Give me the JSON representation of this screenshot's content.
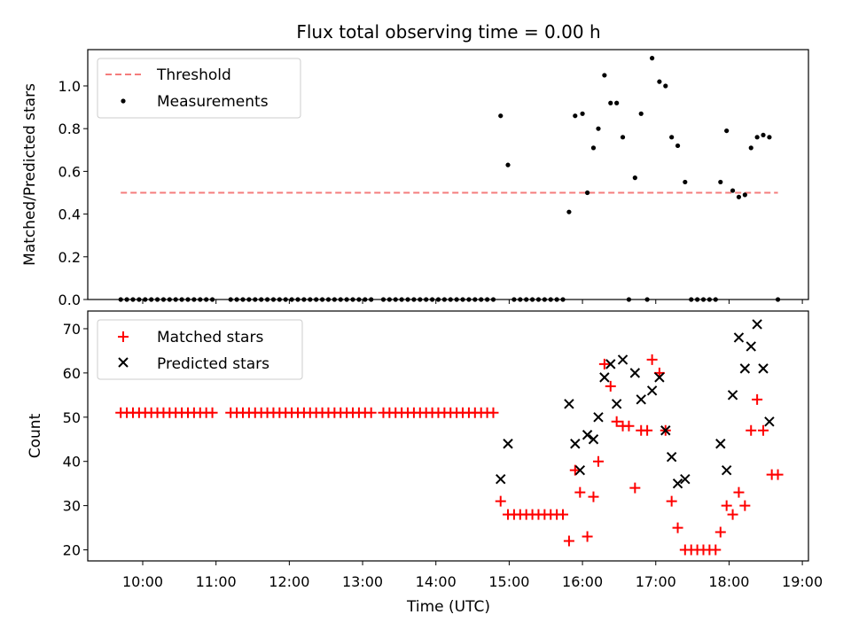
{
  "chart_data": [
    {
      "type": "scatter",
      "title": "Flux total observing time = 0.00 h",
      "ylabel": "Matched/Predicted stars",
      "xlim": [
        "09:15",
        "19:05"
      ],
      "ylim": [
        0,
        1.17
      ],
      "yticks": [
        "0.0",
        "0.2",
        "0.4",
        "0.6",
        "0.8",
        "1.0"
      ],
      "legend_position": "top-left",
      "grid": false,
      "threshold": {
        "name": "Threshold",
        "value": 0.5,
        "x_start": "09:42",
        "x_end": "18:40",
        "color": "#f47c7c"
      },
      "series": [
        {
          "name": "Measurements",
          "color": "#000000",
          "points": [
            [
              "09:42",
              0
            ],
            [
              "09:47",
              0
            ],
            [
              "09:52",
              0
            ],
            [
              "09:57",
              0
            ],
            [
              "10:02",
              0
            ],
            [
              "10:07",
              0
            ],
            [
              "10:12",
              0
            ],
            [
              "10:17",
              0
            ],
            [
              "10:22",
              0
            ],
            [
              "10:27",
              0
            ],
            [
              "10:32",
              0
            ],
            [
              "10:37",
              0
            ],
            [
              "10:42",
              0
            ],
            [
              "10:47",
              0
            ],
            [
              "10:52",
              0
            ],
            [
              "10:57",
              0
            ],
            [
              "11:12",
              0
            ],
            [
              "11:17",
              0
            ],
            [
              "11:22",
              0
            ],
            [
              "11:27",
              0
            ],
            [
              "11:32",
              0
            ],
            [
              "11:37",
              0
            ],
            [
              "11:42",
              0
            ],
            [
              "11:47",
              0
            ],
            [
              "11:52",
              0
            ],
            [
              "11:57",
              0
            ],
            [
              "12:02",
              0
            ],
            [
              "12:07",
              0
            ],
            [
              "12:12",
              0
            ],
            [
              "12:17",
              0
            ],
            [
              "12:22",
              0
            ],
            [
              "12:27",
              0
            ],
            [
              "12:32",
              0
            ],
            [
              "12:37",
              0
            ],
            [
              "12:42",
              0
            ],
            [
              "12:47",
              0
            ],
            [
              "12:52",
              0
            ],
            [
              "12:57",
              0
            ],
            [
              "13:02",
              0
            ],
            [
              "13:07",
              0
            ],
            [
              "13:17",
              0
            ],
            [
              "13:22",
              0
            ],
            [
              "13:27",
              0
            ],
            [
              "13:32",
              0
            ],
            [
              "13:37",
              0
            ],
            [
              "13:42",
              0
            ],
            [
              "13:47",
              0
            ],
            [
              "13:52",
              0
            ],
            [
              "13:57",
              0
            ],
            [
              "14:02",
              0
            ],
            [
              "14:07",
              0
            ],
            [
              "14:12",
              0
            ],
            [
              "14:17",
              0
            ],
            [
              "14:22",
              0
            ],
            [
              "14:27",
              0
            ],
            [
              "14:32",
              0
            ],
            [
              "14:37",
              0
            ],
            [
              "14:42",
              0
            ],
            [
              "14:47",
              0
            ],
            [
              "14:53",
              0.86
            ],
            [
              "14:59",
              0.63
            ],
            [
              "15:04",
              0
            ],
            [
              "15:09",
              0
            ],
            [
              "15:14",
              0
            ],
            [
              "15:19",
              0
            ],
            [
              "15:24",
              0
            ],
            [
              "15:29",
              0
            ],
            [
              "15:34",
              0
            ],
            [
              "15:39",
              0
            ],
            [
              "15:44",
              0
            ],
            [
              "15:49",
              0.41
            ],
            [
              "15:54",
              0.86
            ],
            [
              "16:00",
              0.87
            ],
            [
              "16:04",
              0.5
            ],
            [
              "16:09",
              0.71
            ],
            [
              "16:13",
              0.8
            ],
            [
              "16:18",
              1.05
            ],
            [
              "16:23",
              0.92
            ],
            [
              "16:28",
              0.92
            ],
            [
              "16:33",
              0.76
            ],
            [
              "16:38",
              0
            ],
            [
              "16:43",
              0.57
            ],
            [
              "16:48",
              0.87
            ],
            [
              "16:53",
              0
            ],
            [
              "16:57",
              1.13
            ],
            [
              "17:03",
              1.02
            ],
            [
              "17:08",
              1.0
            ],
            [
              "17:13",
              0.76
            ],
            [
              "17:18",
              0.72
            ],
            [
              "17:24",
              0.55
            ],
            [
              "17:29",
              0
            ],
            [
              "17:34",
              0
            ],
            [
              "17:39",
              0
            ],
            [
              "17:44",
              0
            ],
            [
              "17:49",
              0
            ],
            [
              "17:53",
              0.55
            ],
            [
              "17:58",
              0.79
            ],
            [
              "18:03",
              0.51
            ],
            [
              "18:08",
              0.48
            ],
            [
              "18:13",
              0.49
            ],
            [
              "18:18",
              0.71
            ],
            [
              "18:23",
              0.76
            ],
            [
              "18:28",
              0.77
            ],
            [
              "18:33",
              0.76
            ],
            [
              "18:40",
              0
            ]
          ]
        }
      ]
    },
    {
      "type": "scatter",
      "xlabel": "Time (UTC)",
      "ylabel": "Count",
      "xlim": [
        "09:15",
        "19:05"
      ],
      "ylim": [
        17.5,
        74
      ],
      "xticks": [
        "10:00",
        "11:00",
        "12:00",
        "13:00",
        "14:00",
        "15:00",
        "16:00",
        "17:00",
        "18:00",
        "19:00"
      ],
      "yticks": [
        "20",
        "30",
        "40",
        "50",
        "60",
        "70"
      ],
      "legend_position": "top-left",
      "grid": false,
      "series": [
        {
          "name": "Matched stars",
          "color": "#ff0000",
          "marker": "plus",
          "points": [
            [
              "09:42",
              51
            ],
            [
              "09:47",
              51
            ],
            [
              "09:52",
              51
            ],
            [
              "09:57",
              51
            ],
            [
              "10:02",
              51
            ],
            [
              "10:07",
              51
            ],
            [
              "10:12",
              51
            ],
            [
              "10:17",
              51
            ],
            [
              "10:22",
              51
            ],
            [
              "10:27",
              51
            ],
            [
              "10:32",
              51
            ],
            [
              "10:37",
              51
            ],
            [
              "10:42",
              51
            ],
            [
              "10:47",
              51
            ],
            [
              "10:52",
              51
            ],
            [
              "10:57",
              51
            ],
            [
              "11:12",
              51
            ],
            [
              "11:17",
              51
            ],
            [
              "11:22",
              51
            ],
            [
              "11:27",
              51
            ],
            [
              "11:32",
              51
            ],
            [
              "11:37",
              51
            ],
            [
              "11:42",
              51
            ],
            [
              "11:47",
              51
            ],
            [
              "11:52",
              51
            ],
            [
              "11:57",
              51
            ],
            [
              "12:02",
              51
            ],
            [
              "12:07",
              51
            ],
            [
              "12:12",
              51
            ],
            [
              "12:17",
              51
            ],
            [
              "12:22",
              51
            ],
            [
              "12:27",
              51
            ],
            [
              "12:32",
              51
            ],
            [
              "12:37",
              51
            ],
            [
              "12:42",
              51
            ],
            [
              "12:47",
              51
            ],
            [
              "12:52",
              51
            ],
            [
              "12:57",
              51
            ],
            [
              "13:02",
              51
            ],
            [
              "13:07",
              51
            ],
            [
              "13:17",
              51
            ],
            [
              "13:22",
              51
            ],
            [
              "13:27",
              51
            ],
            [
              "13:32",
              51
            ],
            [
              "13:37",
              51
            ],
            [
              "13:42",
              51
            ],
            [
              "13:47",
              51
            ],
            [
              "13:52",
              51
            ],
            [
              "13:57",
              51
            ],
            [
              "14:02",
              51
            ],
            [
              "14:07",
              51
            ],
            [
              "14:12",
              51
            ],
            [
              "14:17",
              51
            ],
            [
              "14:22",
              51
            ],
            [
              "14:27",
              51
            ],
            [
              "14:32",
              51
            ],
            [
              "14:37",
              51
            ],
            [
              "14:42",
              51
            ],
            [
              "14:47",
              51
            ],
            [
              "14:53",
              31
            ],
            [
              "14:59",
              28
            ],
            [
              "15:04",
              28
            ],
            [
              "15:09",
              28
            ],
            [
              "15:14",
              28
            ],
            [
              "15:19",
              28
            ],
            [
              "15:24",
              28
            ],
            [
              "15:29",
              28
            ],
            [
              "15:34",
              28
            ],
            [
              "15:39",
              28
            ],
            [
              "15:44",
              28
            ],
            [
              "15:49",
              22
            ],
            [
              "15:54",
              38
            ],
            [
              "15:58",
              33
            ],
            [
              "16:04",
              23
            ],
            [
              "16:09",
              32
            ],
            [
              "16:13",
              40
            ],
            [
              "16:18",
              62
            ],
            [
              "16:23",
              57
            ],
            [
              "16:28",
              49
            ],
            [
              "16:33",
              48
            ],
            [
              "16:38",
              48
            ],
            [
              "16:43",
              34
            ],
            [
              "16:48",
              47
            ],
            [
              "16:53",
              47
            ],
            [
              "16:57",
              63
            ],
            [
              "17:03",
              60
            ],
            [
              "17:08",
              47
            ],
            [
              "17:13",
              31
            ],
            [
              "17:18",
              25
            ],
            [
              "17:24",
              20
            ],
            [
              "17:29",
              20
            ],
            [
              "17:34",
              20
            ],
            [
              "17:39",
              20
            ],
            [
              "17:44",
              20
            ],
            [
              "17:49",
              20
            ],
            [
              "17:53",
              24
            ],
            [
              "17:58",
              30
            ],
            [
              "18:03",
              28
            ],
            [
              "18:08",
              33
            ],
            [
              "18:13",
              30
            ],
            [
              "18:18",
              47
            ],
            [
              "18:23",
              54
            ],
            [
              "18:28",
              47
            ],
            [
              "18:35",
              37
            ],
            [
              "18:40",
              37
            ]
          ]
        },
        {
          "name": "Predicted stars",
          "color": "#000000",
          "marker": "x",
          "points": [
            [
              "14:53",
              36
            ],
            [
              "14:59",
              44
            ],
            [
              "15:49",
              53
            ],
            [
              "15:54",
              44
            ],
            [
              "15:58",
              38
            ],
            [
              "16:04",
              46
            ],
            [
              "16:09",
              45
            ],
            [
              "16:13",
              50
            ],
            [
              "16:18",
              59
            ],
            [
              "16:23",
              62
            ],
            [
              "16:28",
              53
            ],
            [
              "16:33",
              63
            ],
            [
              "16:43",
              60
            ],
            [
              "16:48",
              54
            ],
            [
              "16:57",
              56
            ],
            [
              "17:03",
              59
            ],
            [
              "17:08",
              47
            ],
            [
              "17:13",
              41
            ],
            [
              "17:18",
              35
            ],
            [
              "17:24",
              36
            ],
            [
              "17:53",
              44
            ],
            [
              "17:58",
              38
            ],
            [
              "18:03",
              55
            ],
            [
              "18:08",
              68
            ],
            [
              "18:13",
              61
            ],
            [
              "18:18",
              66
            ],
            [
              "18:23",
              71
            ],
            [
              "18:28",
              61
            ],
            [
              "18:33",
              49
            ]
          ]
        }
      ]
    }
  ]
}
